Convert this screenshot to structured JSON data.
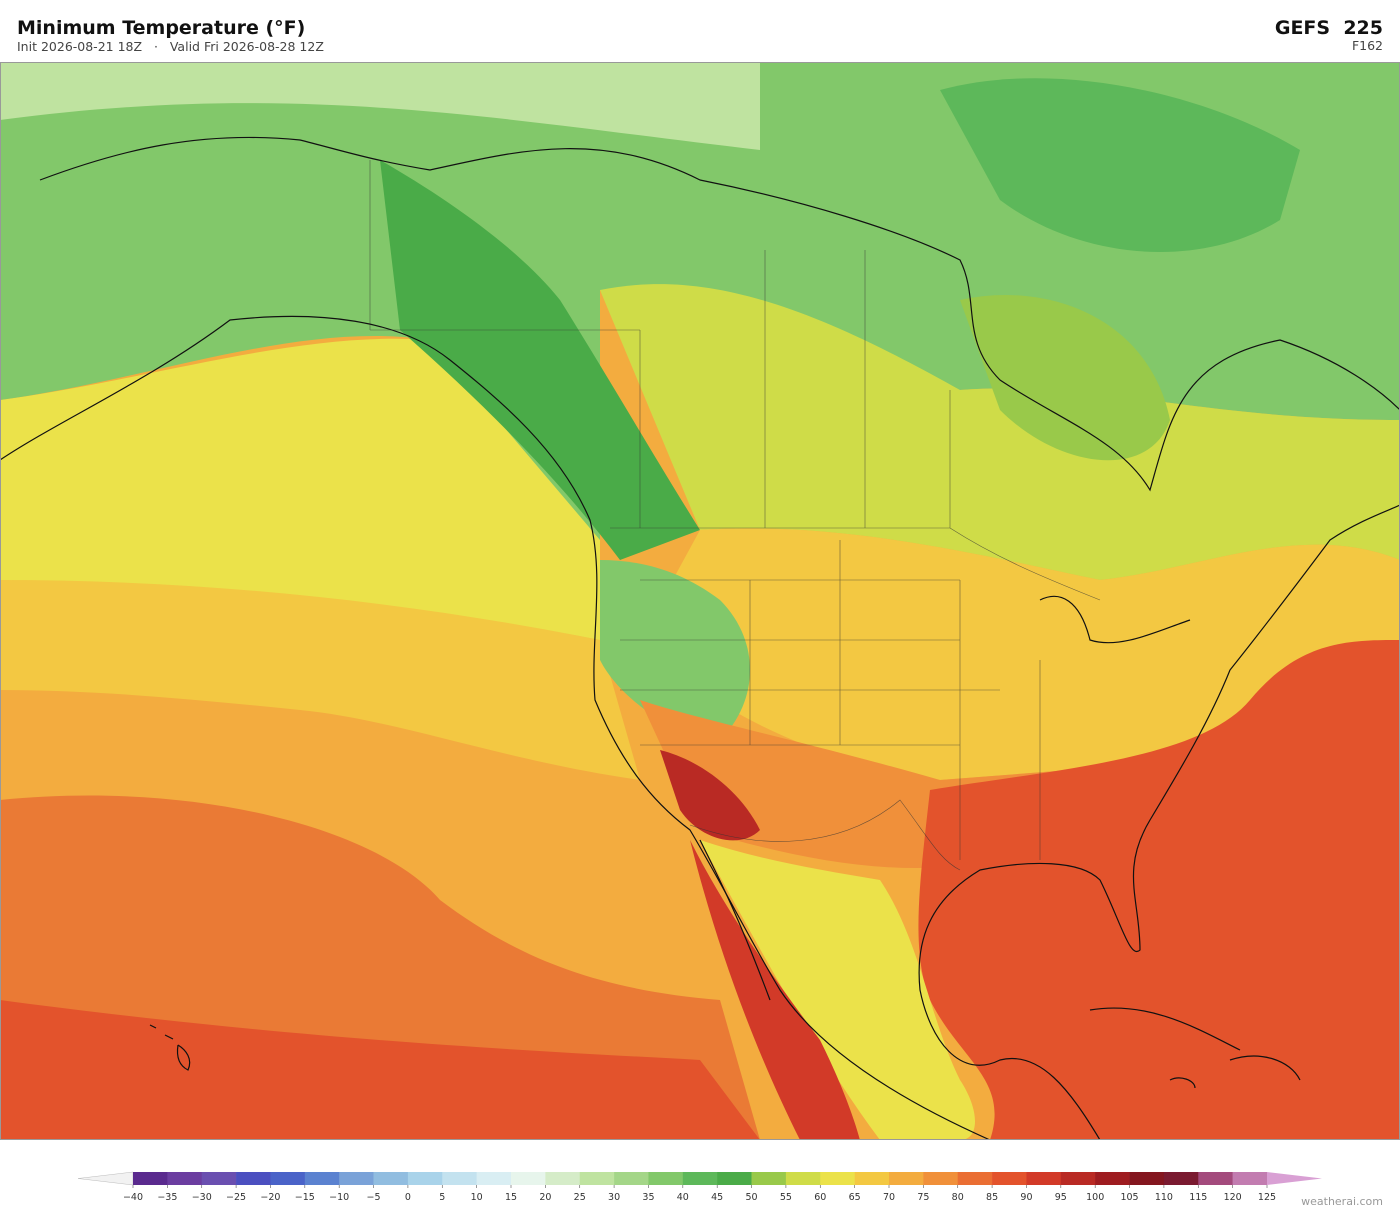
{
  "header": {
    "title": "Minimum Temperature  (°F)",
    "subtitle": "Init 2026-08-21 18Z   ·   Valid Fri 2026-08-28 12Z",
    "model": "GEFS  225",
    "forecast_hour": "F162"
  },
  "colorbar": {
    "ticks": [
      {
        "value": -40,
        "label": "−40"
      },
      {
        "value": -35,
        "label": "−35"
      },
      {
        "value": -30,
        "label": "−30"
      },
      {
        "value": -25,
        "label": "−25"
      },
      {
        "value": -20,
        "label": "−20"
      },
      {
        "value": -15,
        "label": "−15"
      },
      {
        "value": -10,
        "label": "−10"
      },
      {
        "value": -5,
        "label": "−5"
      },
      0,
      5,
      10,
      15,
      20,
      25,
      30,
      35,
      40,
      45,
      50,
      55,
      60,
      65,
      70,
      75,
      80,
      85,
      90,
      95,
      100,
      105,
      110,
      115,
      120,
      125
    ],
    "colors": [
      "#5a2a8e",
      "#6b3da0",
      "#6a4fb0",
      "#4b4fc0",
      "#4a63c8",
      "#5b82d0",
      "#7aa2d8",
      "#91bde0",
      "#a9d3ea",
      "#c3e2ef",
      "#d9eef3",
      "#e7f5ec",
      "#d5ecc8",
      "#bfe3a0",
      "#a4d688",
      "#82c86a",
      "#5db85a",
      "#4aab48",
      "#99c94a",
      "#cfdc48",
      "#ebe24a",
      "#f3c842",
      "#f3ac3f",
      "#f0903a",
      "#ea6e33",
      "#e3532c",
      "#d23a28",
      "#b92a24",
      "#9e1c20",
      "#84161f",
      "#7a1a30",
      "#a34a7c",
      "#c27cb0"
    ],
    "under_color": "#f2f2f2",
    "over_color": "#d9a0d4"
  },
  "footer": {
    "watermark": "weatherai.com"
  }
}
